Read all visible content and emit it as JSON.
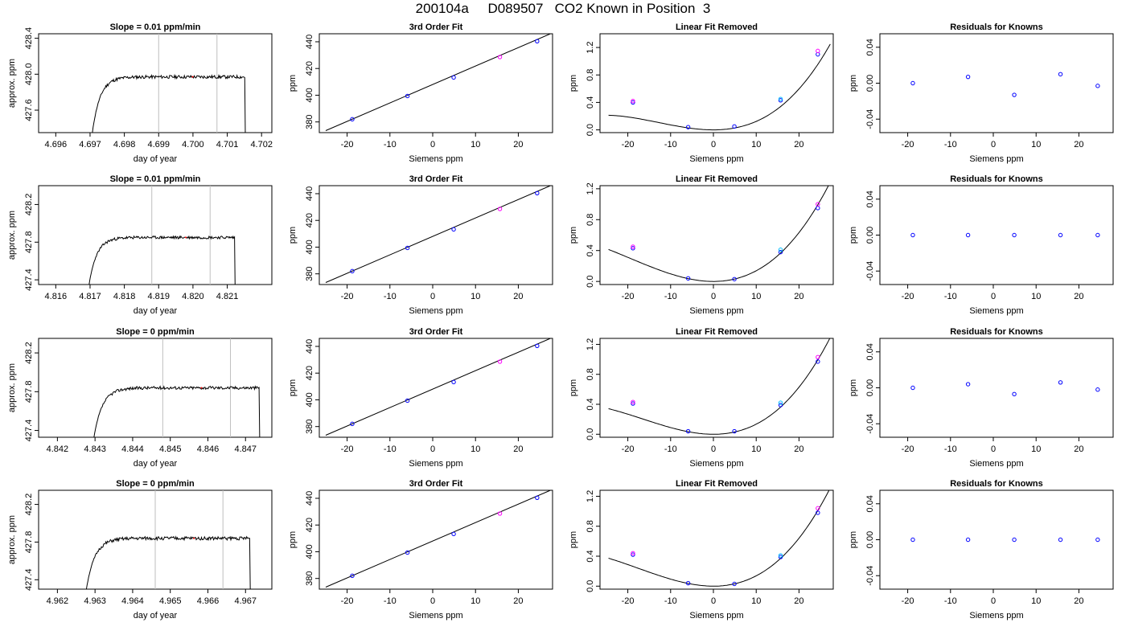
{
  "title": "200104a     D089507   CO2 Known in Position  3",
  "colors": {
    "axis": "#000000",
    "trace": "#000000",
    "vline": "#bebebe",
    "blue_point": "#0000ff",
    "magenta_point": "#ff00ff",
    "cyan_point": "#00bfff",
    "fit_line": "#000000",
    "red_mark": "#ff0000"
  },
  "chart_data": [
    {
      "type": "line",
      "row": 1,
      "col": 1,
      "title": "Slope =  0.01  ppm/min",
      "xlabel": "day of year",
      "ylabel": "approx. ppm",
      "xlim": [
        4.6955,
        4.7023
      ],
      "ylim": [
        427.35,
        428.45
      ],
      "xticks": [
        4.696,
        4.697,
        4.698,
        4.699,
        4.7,
        4.701,
        4.702
      ],
      "xtick_labels": [
        "4.696",
        "4.697",
        "4.698",
        "4.699",
        "4.700",
        "4.701",
        "4.702"
      ],
      "yticks": [
        427.6,
        428.0,
        428.4
      ],
      "ytick_labels": [
        "427.6",
        "428.0",
        "428.4"
      ],
      "vlines": [
        4.699,
        4.7007
      ],
      "trace": {
        "x0": 4.69705,
        "x1": 4.70155,
        "plateau": 427.97,
        "rise": 0.00045,
        "noise": 0.018,
        "seed": 11
      }
    },
    {
      "type": "line",
      "row": 1,
      "col": 2,
      "title": "3rd Order Fit",
      "xlabel": "Siemens ppm",
      "ylabel": "ppm",
      "xlim": [
        -26.5,
        28
      ],
      "ylim": [
        372,
        446
      ],
      "xticks": [
        -20,
        -10,
        0,
        10,
        20
      ],
      "xtick_labels": [
        "-20",
        "-10",
        "0",
        "10",
        "20"
      ],
      "yticks": [
        380,
        400,
        420,
        440
      ],
      "ytick_labels": [
        "380",
        "400",
        "420",
        "440"
      ],
      "line": {
        "x": [
          -25,
          27.5
        ],
        "y": [
          373.5,
          446
        ]
      },
      "points": [
        {
          "x": -18.8,
          "y": 382.0,
          "color": "blue"
        },
        {
          "x": -5.9,
          "y": 399.4,
          "color": "blue"
        },
        {
          "x": 4.9,
          "y": 413.3,
          "color": "blue"
        },
        {
          "x": 15.7,
          "y": 428.6,
          "color": "magenta"
        },
        {
          "x": 24.4,
          "y": 440.4,
          "color": "blue"
        }
      ]
    },
    {
      "type": "scatter",
      "row": 1,
      "col": 3,
      "title": "Linear Fit Removed",
      "xlabel": "Siemens ppm",
      "ylabel": "ppm",
      "xlim": [
        -26.5,
        28
      ],
      "ylim": [
        -0.04,
        1.4
      ],
      "xticks": [
        -20,
        -10,
        0,
        10,
        20
      ],
      "xtick_labels": [
        "-20",
        "-10",
        "0",
        "10",
        "20"
      ],
      "yticks": [
        0.0,
        0.4,
        0.8,
        1.2
      ],
      "ytick_labels": [
        "0.0",
        "0.4",
        "0.8",
        "1.2"
      ],
      "curve": {
        "a": 0.00098,
        "b": 0.0,
        "c3": 2.55e-05,
        "x0": -24.5,
        "x1": 27.3
      },
      "points": [
        {
          "x": -18.8,
          "y": 0.4,
          "color": "blue"
        },
        {
          "x": -18.8,
          "y": 0.42,
          "color": "magenta"
        },
        {
          "x": -5.9,
          "y": 0.04,
          "color": "blue"
        },
        {
          "x": 4.9,
          "y": 0.05,
          "color": "blue"
        },
        {
          "x": 15.7,
          "y": 0.43,
          "color": "blue"
        },
        {
          "x": 15.7,
          "y": 0.45,
          "color": "cyan"
        },
        {
          "x": 24.4,
          "y": 1.1,
          "color": "blue"
        },
        {
          "x": 24.4,
          "y": 1.15,
          "color": "magenta"
        }
      ]
    },
    {
      "type": "scatter",
      "row": 1,
      "col": 4,
      "title": "Residuals for Knowns",
      "xlabel": "Siemens ppm",
      "ylabel": "ppm",
      "xlim": [
        -26.5,
        28
      ],
      "ylim": [
        -0.055,
        0.055
      ],
      "xticks": [
        -20,
        -10,
        0,
        10,
        20
      ],
      "xtick_labels": [
        "-20",
        "-10",
        "0",
        "10",
        "20"
      ],
      "yticks": [
        -0.04,
        0.0,
        0.04
      ],
      "ytick_labels": [
        "-0.04",
        "0.00",
        "0.04"
      ],
      "points": [
        {
          "x": -18.8,
          "y": 0.0,
          "color": "blue"
        },
        {
          "x": -5.9,
          "y": 0.007,
          "color": "blue"
        },
        {
          "x": 4.9,
          "y": -0.013,
          "color": "blue"
        },
        {
          "x": 15.7,
          "y": 0.01,
          "color": "blue"
        },
        {
          "x": 24.4,
          "y": -0.003,
          "color": "blue"
        }
      ]
    },
    {
      "type": "line",
      "row": 2,
      "col": 1,
      "title": "Slope =  0.01  ppm/min",
      "xlabel": "day of year",
      "ylabel": "approx. ppm",
      "xlim": [
        4.8155,
        4.8223
      ],
      "ylim": [
        427.35,
        428.4
      ],
      "xticks": [
        4.816,
        4.817,
        4.818,
        4.819,
        4.82,
        4.821
      ],
      "xtick_labels": [
        "4.816",
        "4.817",
        "4.818",
        "4.819",
        "4.820",
        "4.821"
      ],
      "yticks": [
        427.4,
        427.8,
        428.2
      ],
      "ytick_labels": [
        "427.4",
        "427.8",
        "428.2"
      ],
      "vlines": [
        4.8188,
        4.8205
      ],
      "trace": {
        "x0": 4.81695,
        "x1": 4.82125,
        "plateau": 427.85,
        "rise": 0.00045,
        "noise": 0.015,
        "seed": 23
      }
    },
    {
      "type": "line",
      "row": 2,
      "col": 2,
      "title": "3rd Order Fit",
      "xlabel": "Siemens ppm",
      "ylabel": "ppm",
      "xlim": [
        -26.5,
        28
      ],
      "ylim": [
        372,
        446
      ],
      "xticks": [
        -20,
        -10,
        0,
        10,
        20
      ],
      "xtick_labels": [
        "-20",
        "-10",
        "0",
        "10",
        "20"
      ],
      "yticks": [
        380,
        400,
        420,
        440
      ],
      "ytick_labels": [
        "380",
        "400",
        "420",
        "440"
      ],
      "line": {
        "x": [
          -25,
          27.5
        ],
        "y": [
          373.5,
          446
        ]
      },
      "points": [
        {
          "x": -18.8,
          "y": 382.0,
          "color": "blue"
        },
        {
          "x": -5.9,
          "y": 399.4,
          "color": "blue"
        },
        {
          "x": 4.9,
          "y": 413.3,
          "color": "blue"
        },
        {
          "x": 15.7,
          "y": 428.6,
          "color": "magenta"
        },
        {
          "x": 24.4,
          "y": 440.4,
          "color": "blue"
        }
      ]
    },
    {
      "type": "scatter",
      "row": 2,
      "col": 3,
      "title": "Linear Fit Removed",
      "xlabel": "Siemens ppm",
      "ylabel": "ppm",
      "xlim": [
        -26.5,
        28
      ],
      "ylim": [
        -0.04,
        1.24
      ],
      "xticks": [
        -20,
        -10,
        0,
        10,
        20
      ],
      "xtick_labels": [
        "-20",
        "-10",
        "0",
        "10",
        "20"
      ],
      "yticks": [
        0.0,
        0.4,
        0.8,
        1.2
      ],
      "ytick_labels": [
        "0.0",
        "0.4",
        "0.8",
        "1.2"
      ],
      "curve": {
        "a": 0.00118,
        "b": 0.0,
        "c3": 2e-05,
        "x0": -24.5,
        "x1": 27.3
      },
      "points": [
        {
          "x": -18.8,
          "y": 0.43,
          "color": "blue"
        },
        {
          "x": -18.8,
          "y": 0.45,
          "color": "magenta"
        },
        {
          "x": -5.9,
          "y": 0.04,
          "color": "blue"
        },
        {
          "x": 4.9,
          "y": 0.03,
          "color": "blue"
        },
        {
          "x": 15.7,
          "y": 0.38,
          "color": "blue"
        },
        {
          "x": 15.7,
          "y": 0.41,
          "color": "cyan"
        },
        {
          "x": 24.4,
          "y": 0.95,
          "color": "blue"
        },
        {
          "x": 24.4,
          "y": 1.0,
          "color": "magenta"
        }
      ]
    },
    {
      "type": "scatter",
      "row": 2,
      "col": 4,
      "title": "Residuals for Knowns",
      "xlabel": "Siemens ppm",
      "ylabel": "ppm",
      "xlim": [
        -26.5,
        28
      ],
      "ylim": [
        -0.055,
        0.055
      ],
      "xticks": [
        -20,
        -10,
        0,
        10,
        20
      ],
      "xtick_labels": [
        "-20",
        "-10",
        "0",
        "10",
        "20"
      ],
      "yticks": [
        -0.04,
        0.0,
        0.04
      ],
      "ytick_labels": [
        "-0.04",
        "0.00",
        "0.04"
      ],
      "points": [
        {
          "x": -18.8,
          "y": 0.0,
          "color": "blue"
        },
        {
          "x": -5.9,
          "y": 0.0,
          "color": "blue"
        },
        {
          "x": 4.9,
          "y": 0.0,
          "color": "blue"
        },
        {
          "x": 15.7,
          "y": 0.0,
          "color": "blue"
        },
        {
          "x": 24.4,
          "y": 0.0,
          "color": "blue"
        }
      ]
    },
    {
      "type": "line",
      "row": 3,
      "col": 1,
      "title": "Slope =  0  ppm/min",
      "xlabel": "day of year",
      "ylabel": "approx. ppm",
      "xlim": [
        4.8415,
        4.8477
      ],
      "ylim": [
        427.33,
        428.35
      ],
      "xticks": [
        4.842,
        4.843,
        4.844,
        4.845,
        4.846,
        4.847
      ],
      "xtick_labels": [
        "4.842",
        "4.843",
        "4.844",
        "4.845",
        "4.846",
        "4.847"
      ],
      "yticks": [
        427.4,
        427.8,
        428.2
      ],
      "ytick_labels": [
        "427.4",
        "427.8",
        "428.2"
      ],
      "vlines": [
        4.8448,
        4.8466
      ],
      "trace": {
        "x0": 4.84295,
        "x1": 4.8474,
        "plateau": 427.84,
        "rise": 0.00045,
        "noise": 0.016,
        "seed": 37
      }
    },
    {
      "type": "line",
      "row": 3,
      "col": 2,
      "title": "3rd Order Fit",
      "xlabel": "Siemens ppm",
      "ylabel": "ppm",
      "xlim": [
        -26.5,
        28
      ],
      "ylim": [
        372,
        446
      ],
      "xticks": [
        -20,
        -10,
        0,
        10,
        20
      ],
      "xtick_labels": [
        "-20",
        "-10",
        "0",
        "10",
        "20"
      ],
      "yticks": [
        380,
        400,
        420,
        440
      ],
      "ytick_labels": [
        "380",
        "400",
        "420",
        "440"
      ],
      "line": {
        "x": [
          -25,
          27.5
        ],
        "y": [
          373.5,
          446
        ]
      },
      "points": [
        {
          "x": -18.8,
          "y": 382.0,
          "color": "blue"
        },
        {
          "x": -5.9,
          "y": 399.4,
          "color": "blue"
        },
        {
          "x": 4.9,
          "y": 413.3,
          "color": "blue"
        },
        {
          "x": 15.7,
          "y": 428.6,
          "color": "magenta"
        },
        {
          "x": 24.4,
          "y": 440.4,
          "color": "blue"
        }
      ]
    },
    {
      "type": "scatter",
      "row": 3,
      "col": 3,
      "title": "Linear Fit Removed",
      "xlabel": "Siemens ppm",
      "ylabel": "ppm",
      "xlim": [
        -26.5,
        28
      ],
      "ylim": [
        -0.04,
        1.28
      ],
      "xticks": [
        -20,
        -10,
        0,
        10,
        20
      ],
      "xtick_labels": [
        "-20",
        "-10",
        "0",
        "10",
        "20"
      ],
      "yticks": [
        0.0,
        0.4,
        0.8,
        1.2
      ],
      "ytick_labels": [
        "0.0",
        "0.4",
        "0.8",
        "1.2"
      ],
      "curve": {
        "a": 0.00112,
        "b": 0.0,
        "c3": 2.25e-05,
        "x0": -24.5,
        "x1": 27.3
      },
      "points": [
        {
          "x": -18.8,
          "y": 0.41,
          "color": "blue"
        },
        {
          "x": -18.8,
          "y": 0.43,
          "color": "magenta"
        },
        {
          "x": -5.9,
          "y": 0.04,
          "color": "blue"
        },
        {
          "x": 4.9,
          "y": 0.04,
          "color": "blue"
        },
        {
          "x": 15.7,
          "y": 0.39,
          "color": "blue"
        },
        {
          "x": 15.7,
          "y": 0.42,
          "color": "cyan"
        },
        {
          "x": 24.4,
          "y": 0.97,
          "color": "blue"
        },
        {
          "x": 24.4,
          "y": 1.03,
          "color": "magenta"
        }
      ]
    },
    {
      "type": "scatter",
      "row": 3,
      "col": 4,
      "title": "Residuals for Knowns",
      "xlabel": "Siemens ppm",
      "ylabel": "ppm",
      "xlim": [
        -26.5,
        28
      ],
      "ylim": [
        -0.055,
        0.055
      ],
      "xticks": [
        -20,
        -10,
        0,
        10,
        20
      ],
      "xtick_labels": [
        "-20",
        "-10",
        "0",
        "10",
        "20"
      ],
      "yticks": [
        -0.04,
        0.0,
        0.04
      ],
      "ytick_labels": [
        "-0.04",
        "0.00",
        "0.04"
      ],
      "points": [
        {
          "x": -18.8,
          "y": 0.0,
          "color": "blue"
        },
        {
          "x": -5.9,
          "y": 0.004,
          "color": "blue"
        },
        {
          "x": 4.9,
          "y": -0.007,
          "color": "blue"
        },
        {
          "x": 15.7,
          "y": 0.006,
          "color": "blue"
        },
        {
          "x": 24.4,
          "y": -0.002,
          "color": "blue"
        }
      ]
    },
    {
      "type": "line",
      "row": 4,
      "col": 1,
      "title": "Slope =  0  ppm/min",
      "xlabel": "day of year",
      "ylabel": "approx. ppm",
      "xlim": [
        4.9615,
        4.9677
      ],
      "ylim": [
        427.3,
        428.35
      ],
      "xticks": [
        4.962,
        4.963,
        4.964,
        4.965,
        4.966,
        4.967
      ],
      "xtick_labels": [
        "4.962",
        "4.963",
        "4.964",
        "4.965",
        "4.966",
        "4.967"
      ],
      "yticks": [
        427.4,
        427.8,
        428.2
      ],
      "ytick_labels": [
        "427.4",
        "427.8",
        "428.2"
      ],
      "vlines": [
        4.9646,
        4.9664
      ],
      "trace": {
        "x0": 4.96275,
        "x1": 4.96715,
        "plateau": 427.84,
        "rise": 0.00045,
        "noise": 0.018,
        "seed": 51
      }
    },
    {
      "type": "line",
      "row": 4,
      "col": 2,
      "title": "3rd Order Fit",
      "xlabel": "Siemens ppm",
      "ylabel": "ppm",
      "xlim": [
        -26.5,
        28
      ],
      "ylim": [
        372,
        446
      ],
      "xticks": [
        -20,
        -10,
        0,
        10,
        20
      ],
      "xtick_labels": [
        "-20",
        "-10",
        "0",
        "10",
        "20"
      ],
      "yticks": [
        380,
        400,
        420,
        440
      ],
      "ytick_labels": [
        "380",
        "400",
        "420",
        "440"
      ],
      "line": {
        "x": [
          -25,
          27.5
        ],
        "y": [
          373.5,
          446
        ]
      },
      "points": [
        {
          "x": -18.8,
          "y": 382.0,
          "color": "blue"
        },
        {
          "x": -5.9,
          "y": 399.4,
          "color": "blue"
        },
        {
          "x": 4.9,
          "y": 413.3,
          "color": "blue"
        },
        {
          "x": 15.7,
          "y": 428.6,
          "color": "magenta"
        },
        {
          "x": 24.4,
          "y": 440.4,
          "color": "blue"
        }
      ]
    },
    {
      "type": "scatter",
      "row": 4,
      "col": 3,
      "title": "Linear Fit Removed",
      "xlabel": "Siemens ppm",
      "ylabel": "ppm",
      "xlim": [
        -26.5,
        28
      ],
      "ylim": [
        -0.04,
        1.28
      ],
      "xticks": [
        -20,
        -10,
        0,
        10,
        20
      ],
      "xtick_labels": [
        "-20",
        "-10",
        "0",
        "10",
        "20"
      ],
      "yticks": [
        0.0,
        0.4,
        0.8,
        1.2
      ],
      "ytick_labels": [
        "0.0",
        "0.4",
        "0.8",
        "1.2"
      ],
      "curve": {
        "a": 0.00116,
        "b": 0.0,
        "c3": 2.2e-05,
        "x0": -24.5,
        "x1": 27.3
      },
      "points": [
        {
          "x": -18.8,
          "y": 0.42,
          "color": "blue"
        },
        {
          "x": -18.8,
          "y": 0.44,
          "color": "magenta"
        },
        {
          "x": -5.9,
          "y": 0.04,
          "color": "blue"
        },
        {
          "x": 4.9,
          "y": 0.03,
          "color": "blue"
        },
        {
          "x": 15.7,
          "y": 0.39,
          "color": "blue"
        },
        {
          "x": 15.7,
          "y": 0.41,
          "color": "cyan"
        },
        {
          "x": 24.4,
          "y": 0.98,
          "color": "blue"
        },
        {
          "x": 24.4,
          "y": 1.04,
          "color": "magenta"
        }
      ]
    },
    {
      "type": "scatter",
      "row": 4,
      "col": 4,
      "title": "Residuals for Knowns",
      "xlabel": "Siemens ppm",
      "ylabel": "ppm",
      "xlim": [
        -26.5,
        28
      ],
      "ylim": [
        -0.055,
        0.055
      ],
      "xticks": [
        -20,
        -10,
        0,
        10,
        20
      ],
      "xtick_labels": [
        "-20",
        "-10",
        "0",
        "10",
        "20"
      ],
      "yticks": [
        -0.04,
        0.0,
        0.04
      ],
      "ytick_labels": [
        "-0.04",
        "0.00",
        "0.04"
      ],
      "points": [
        {
          "x": -18.8,
          "y": 0.0,
          "color": "blue"
        },
        {
          "x": -5.9,
          "y": 0.0,
          "color": "blue"
        },
        {
          "x": 4.9,
          "y": 0.0,
          "color": "blue"
        },
        {
          "x": 15.7,
          "y": 0.0,
          "color": "blue"
        },
        {
          "x": 24.4,
          "y": 0.0,
          "color": "blue"
        }
      ]
    }
  ]
}
